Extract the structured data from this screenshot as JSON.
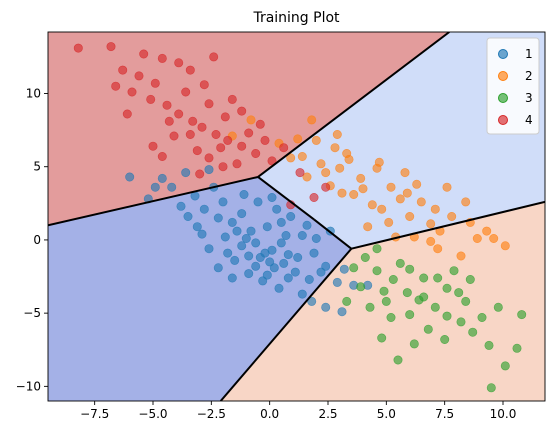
{
  "chart_data": {
    "type": "scatter",
    "title": "Training Plot",
    "xlabel": "",
    "ylabel": "",
    "xlim": [
      -9.5,
      11.8
    ],
    "ylim": [
      -11,
      14.2
    ],
    "xticks": [
      -7.5,
      -5.0,
      -2.5,
      0.0,
      2.5,
      5.0,
      7.5,
      10.0
    ],
    "xtick_labels": [
      "−7.5",
      "−5.0",
      "−2.5",
      "0.0",
      "2.5",
      "5.0",
      "7.5",
      "10.0"
    ],
    "yticks": [
      -10,
      -5,
      0,
      5,
      10
    ],
    "ytick_labels": [
      "−10",
      "−5",
      "0",
      "5",
      "10"
    ],
    "grid": false,
    "legend_position": "top-right",
    "decision_regions": [
      {
        "class": "1",
        "color": "#a4b1e7",
        "polygon": [
          [
            -9.5,
            1.0
          ],
          [
            -0.5,
            4.3
          ],
          [
            1.9,
            1.4
          ],
          [
            3.5,
            -0.6
          ],
          [
            -2.1,
            -11
          ],
          [
            -9.5,
            -11
          ]
        ]
      },
      {
        "class": "2",
        "color": "#d0ddf9",
        "polygon": [
          [
            -0.5,
            4.3
          ],
          [
            7.7,
            14.2
          ],
          [
            11.8,
            14.2
          ],
          [
            11.8,
            2.6
          ],
          [
            3.5,
            -0.6
          ],
          [
            1.9,
            1.4
          ]
        ]
      },
      {
        "class": "3",
        "color": "#f8d6c6",
        "polygon": [
          [
            3.5,
            -0.6
          ],
          [
            11.8,
            2.6
          ],
          [
            11.8,
            -11
          ],
          [
            -2.1,
            -11
          ]
        ]
      },
      {
        "class": "4",
        "color": "#e39c9c",
        "polygon": [
          [
            -9.5,
            1.0
          ],
          [
            -9.5,
            14.2
          ],
          [
            7.7,
            14.2
          ],
          [
            -0.5,
            4.3
          ]
        ]
      }
    ],
    "boundaries": [
      [
        [
          -9.5,
          1.0
        ],
        [
          -0.5,
          4.3
        ]
      ],
      [
        [
          -0.5,
          4.3
        ],
        [
          7.7,
          14.2
        ]
      ],
      [
        [
          -0.5,
          4.3
        ],
        [
          1.9,
          1.4
        ]
      ],
      [
        [
          1.9,
          1.4
        ],
        [
          3.5,
          -0.6
        ]
      ],
      [
        [
          3.5,
          -0.6
        ],
        [
          11.8,
          2.6
        ]
      ],
      [
        [
          3.5,
          -0.6
        ],
        [
          -2.1,
          -11
        ]
      ]
    ],
    "series": [
      {
        "name": "1",
        "color": "#1f77b4",
        "points": [
          [
            -4.6,
            4.2
          ],
          [
            -5.2,
            2.8
          ],
          [
            -4.2,
            3.6
          ],
          [
            -3.8,
            2.3
          ],
          [
            -3.2,
            3.0
          ],
          [
            -2.8,
            2.1
          ],
          [
            -2.0,
            2.6
          ],
          [
            -1.6,
            1.2
          ],
          [
            -1.9,
            0.2
          ],
          [
            -1.2,
            -0.4
          ],
          [
            -0.8,
            0.6
          ],
          [
            -0.4,
            -1.2
          ],
          [
            0.1,
            -0.7
          ],
          [
            0.6,
            -1.6
          ],
          [
            1.1,
            -2.2
          ],
          [
            1.7,
            -2.7
          ],
          [
            2.4,
            -1.8
          ],
          [
            1.9,
            -0.9
          ],
          [
            -0.1,
            0.9
          ],
          [
            0.7,
            0.3
          ],
          [
            -2.6,
            -0.6
          ],
          [
            -2.2,
            -1.9
          ],
          [
            -1.5,
            -1.4
          ],
          [
            -0.9,
            -2.3
          ],
          [
            -0.3,
            -2.8
          ],
          [
            0.4,
            -3.3
          ],
          [
            1.4,
            -3.7
          ],
          [
            2.4,
            -4.6
          ],
          [
            3.1,
            -4.9
          ],
          [
            3.6,
            -3.1
          ],
          [
            -3.1,
            0.9
          ],
          [
            -2.9,
            0.4
          ],
          [
            -1.1,
            3.1
          ],
          [
            -0.5,
            2.6
          ],
          [
            0.3,
            2.1
          ],
          [
            0.9,
            1.6
          ],
          [
            1.6,
            1.0
          ],
          [
            2.6,
            0.6
          ],
          [
            -0.6,
            -0.2
          ],
          [
            -1.4,
            0.6
          ],
          [
            0.2,
            -1.9
          ],
          [
            0.8,
            -2.6
          ],
          [
            -0.2,
            -0.9
          ],
          [
            1.2,
            -1.2
          ],
          [
            -2.4,
            3.6
          ],
          [
            -3.5,
            1.6
          ],
          [
            -1.8,
            -0.9
          ],
          [
            2.9,
            -2.9
          ],
          [
            4.2,
            -3.1
          ],
          [
            1.8,
            -4.2
          ],
          [
            -6.0,
            4.3
          ],
          [
            -4.9,
            3.6
          ],
          [
            -3.6,
            4.6
          ],
          [
            -2.6,
            4.8
          ],
          [
            0.1,
            2.9
          ],
          [
            -1.2,
            1.8
          ],
          [
            0.5,
            -0.2
          ],
          [
            1.4,
            0.3
          ],
          [
            -0.1,
            -2.4
          ],
          [
            2.2,
            -2.2
          ],
          [
            -1.6,
            -2.6
          ],
          [
            -0.9,
            -1.1
          ],
          [
            0.0,
            -1.5
          ],
          [
            0.8,
            -1.0
          ],
          [
            2.0,
            0.1
          ],
          [
            3.2,
            -2.0
          ],
          [
            -2.2,
            1.5
          ],
          [
            -1.0,
            0.1
          ],
          [
            0.5,
            1.2
          ],
          [
            -0.6,
            -1.8
          ]
        ]
      },
      {
        "name": "2",
        "color": "#ff7f0e",
        "points": [
          [
            1.8,
            8.2
          ],
          [
            2.0,
            6.8
          ],
          [
            2.8,
            6.3
          ],
          [
            1.4,
            5.7
          ],
          [
            2.2,
            5.2
          ],
          [
            3.4,
            5.5
          ],
          [
            3.9,
            4.2
          ],
          [
            4.6,
            4.9
          ],
          [
            5.2,
            3.6
          ],
          [
            5.9,
            3.2
          ],
          [
            6.5,
            2.6
          ],
          [
            7.1,
            2.1
          ],
          [
            7.8,
            1.6
          ],
          [
            8.6,
            1.2
          ],
          [
            9.3,
            0.6
          ],
          [
            10.1,
            -0.4
          ],
          [
            8.2,
            -1.1
          ],
          [
            7.2,
            -0.6
          ],
          [
            6.2,
            0.2
          ],
          [
            5.1,
            1.2
          ],
          [
            4.4,
            2.4
          ],
          [
            3.6,
            3.1
          ],
          [
            2.6,
            3.7
          ],
          [
            1.6,
            4.3
          ],
          [
            0.9,
            5.6
          ],
          [
            0.4,
            6.6
          ],
          [
            1.2,
            6.9
          ],
          [
            2.9,
            7.2
          ],
          [
            -0.8,
            8.2
          ],
          [
            -1.6,
            7.1
          ],
          [
            3.1,
            3.2
          ],
          [
            4.8,
            2.1
          ],
          [
            6.0,
            1.6
          ],
          [
            6.9,
            1.1
          ],
          [
            4.2,
            0.9
          ],
          [
            5.4,
            0.2
          ],
          [
            6.9,
            -0.1
          ],
          [
            9.6,
            0.1
          ],
          [
            7.6,
            3.6
          ],
          [
            8.4,
            2.6
          ],
          [
            2.4,
            4.6
          ],
          [
            3.0,
            4.9
          ],
          [
            4.0,
            3.5
          ],
          [
            5.6,
            2.8
          ],
          [
            6.3,
            3.8
          ],
          [
            7.3,
            0.6
          ],
          [
            8.9,
            0.1
          ],
          [
            3.3,
            5.9
          ],
          [
            4.7,
            5.3
          ],
          [
            5.8,
            4.6
          ]
        ]
      },
      {
        "name": "3",
        "color": "#2ca02c",
        "points": [
          [
            4.1,
            -1.2
          ],
          [
            4.6,
            -2.1
          ],
          [
            5.3,
            -2.7
          ],
          [
            5.9,
            -3.6
          ],
          [
            6.4,
            -4.1
          ],
          [
            7.1,
            -4.6
          ],
          [
            7.6,
            -5.2
          ],
          [
            8.2,
            -5.6
          ],
          [
            8.7,
            -6.3
          ],
          [
            9.4,
            -7.2
          ],
          [
            10.1,
            -8.6
          ],
          [
            9.5,
            -10.1
          ],
          [
            10.6,
            -7.4
          ],
          [
            9.1,
            -5.3
          ],
          [
            8.4,
            -4.2
          ],
          [
            7.6,
            -3.3
          ],
          [
            6.6,
            -2.6
          ],
          [
            5.6,
            -1.6
          ],
          [
            4.6,
            -0.6
          ],
          [
            3.6,
            -1.9
          ],
          [
            3.9,
            -3.2
          ],
          [
            5.0,
            -4.2
          ],
          [
            6.0,
            -5.1
          ],
          [
            6.8,
            -6.1
          ],
          [
            7.5,
            -6.8
          ],
          [
            5.5,
            -8.2
          ],
          [
            4.8,
            -6.7
          ],
          [
            6.2,
            -7.1
          ],
          [
            7.9,
            -2.1
          ],
          [
            8.6,
            -2.7
          ],
          [
            10.8,
            -5.1
          ],
          [
            9.8,
            -4.6
          ],
          [
            3.3,
            -4.2
          ],
          [
            4.3,
            -4.6
          ],
          [
            5.2,
            -5.3
          ],
          [
            6.6,
            -3.9
          ],
          [
            7.2,
            -2.6
          ],
          [
            8.1,
            -3.6
          ],
          [
            6.0,
            -2.0
          ],
          [
            4.9,
            -3.5
          ]
        ]
      },
      {
        "name": "4",
        "color": "#d62728",
        "points": [
          [
            -8.2,
            13.1
          ],
          [
            -6.8,
            13.2
          ],
          [
            -5.4,
            12.7
          ],
          [
            -4.6,
            12.4
          ],
          [
            -3.4,
            11.6
          ],
          [
            -2.4,
            12.5
          ],
          [
            -6.6,
            10.5
          ],
          [
            -5.9,
            10.1
          ],
          [
            -5.1,
            9.6
          ],
          [
            -4.4,
            9.2
          ],
          [
            -3.9,
            8.6
          ],
          [
            -3.3,
            8.1
          ],
          [
            -2.9,
            7.7
          ],
          [
            -2.3,
            7.2
          ],
          [
            -1.8,
            6.8
          ],
          [
            -1.2,
            6.4
          ],
          [
            -0.6,
            5.9
          ],
          [
            0.1,
            5.4
          ],
          [
            0.6,
            6.3
          ],
          [
            1.3,
            4.6
          ],
          [
            -2.6,
            9.3
          ],
          [
            -1.9,
            8.4
          ],
          [
            -3.6,
            10.1
          ],
          [
            -4.1,
            7.1
          ],
          [
            -2.6,
            5.6
          ],
          [
            -3.1,
            6.1
          ],
          [
            -1.6,
            9.6
          ],
          [
            -5.6,
            11.2
          ],
          [
            -4.9,
            10.7
          ],
          [
            -6.1,
            8.6
          ],
          [
            -0.9,
            7.3
          ],
          [
            -2.1,
            6.3
          ],
          [
            -3.4,
            7.2
          ],
          [
            -1.4,
            5.2
          ],
          [
            -4.6,
            5.7
          ],
          [
            -0.4,
            7.9
          ],
          [
            1.9,
            2.9
          ],
          [
            2.4,
            3.6
          ],
          [
            -6.3,
            11.6
          ],
          [
            -3.9,
            12.1
          ],
          [
            -2.8,
            10.6
          ],
          [
            -1.2,
            8.8
          ],
          [
            -2.0,
            5.0
          ],
          [
            -0.2,
            6.8
          ],
          [
            -4.3,
            8.1
          ],
          [
            -5.0,
            6.4
          ],
          [
            -3.0,
            4.5
          ],
          [
            0.9,
            2.4
          ]
        ]
      }
    ]
  }
}
